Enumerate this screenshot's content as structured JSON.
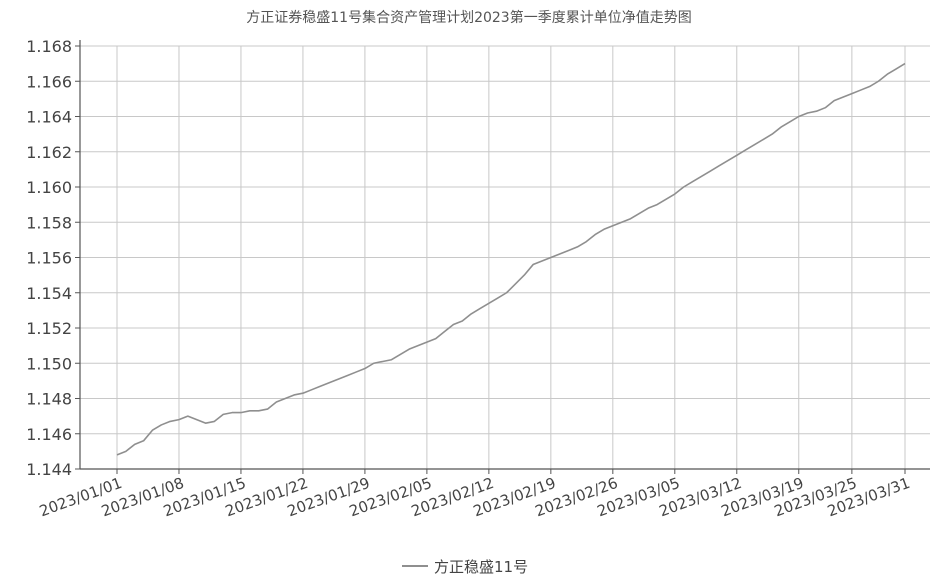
{
  "chart_data": {
    "type": "line",
    "title": "方正证券稳盛11号集合资产管理计划2023第一季度累计单位净值走势图",
    "xlabel": "",
    "ylabel": "",
    "ylim": [
      1.144,
      1.168
    ],
    "yticks": [
      "1.144",
      "1.146",
      "1.148",
      "1.150",
      "1.152",
      "1.154",
      "1.156",
      "1.158",
      "1.160",
      "1.162",
      "1.164",
      "1.166",
      "1.168"
    ],
    "xticks": [
      "2023/01/01",
      "2023/01/08",
      "2023/01/15",
      "2023/01/22",
      "2023/01/29",
      "2023/02/05",
      "2023/02/12",
      "2023/02/19",
      "2023/02/26",
      "2023/03/05",
      "2023/03/12",
      "2023/03/19",
      "2023/03/25",
      "2023/03/31"
    ],
    "grid": true,
    "legend": "bottom-center",
    "series": [
      {
        "name": "方正稳盛11号",
        "x": [
          "2023/01/01",
          "2023/01/02",
          "2023/01/03",
          "2023/01/04",
          "2023/01/05",
          "2023/01/06",
          "2023/01/07",
          "2023/01/08",
          "2023/01/09",
          "2023/01/10",
          "2023/01/11",
          "2023/01/12",
          "2023/01/13",
          "2023/01/14",
          "2023/01/15",
          "2023/01/16",
          "2023/01/17",
          "2023/01/18",
          "2023/01/19",
          "2023/01/20",
          "2023/01/21",
          "2023/01/22",
          "2023/01/23",
          "2023/01/24",
          "2023/01/25",
          "2023/01/26",
          "2023/01/27",
          "2023/01/28",
          "2023/01/29",
          "2023/01/30",
          "2023/01/31",
          "2023/02/01",
          "2023/02/02",
          "2023/02/03",
          "2023/02/04",
          "2023/02/05",
          "2023/02/06",
          "2023/02/07",
          "2023/02/08",
          "2023/02/09",
          "2023/02/10",
          "2023/02/11",
          "2023/02/12",
          "2023/02/13",
          "2023/02/14",
          "2023/02/15",
          "2023/02/16",
          "2023/02/17",
          "2023/02/18",
          "2023/02/19",
          "2023/02/20",
          "2023/02/21",
          "2023/02/22",
          "2023/02/23",
          "2023/02/24",
          "2023/02/25",
          "2023/02/26",
          "2023/02/27",
          "2023/02/28",
          "2023/03/01",
          "2023/03/02",
          "2023/03/03",
          "2023/03/04",
          "2023/03/05",
          "2023/03/06",
          "2023/03/07",
          "2023/03/08",
          "2023/03/09",
          "2023/03/10",
          "2023/03/11",
          "2023/03/12",
          "2023/03/13",
          "2023/03/14",
          "2023/03/15",
          "2023/03/16",
          "2023/03/17",
          "2023/03/18",
          "2023/03/19",
          "2023/03/20",
          "2023/03/21",
          "2023/03/22",
          "2023/03/23",
          "2023/03/24",
          "2023/03/25",
          "2023/03/26",
          "2023/03/27",
          "2023/03/28",
          "2023/03/29",
          "2023/03/30",
          "2023/03/31"
        ],
        "values": [
          1.1448,
          1.145,
          1.1454,
          1.1456,
          1.1462,
          1.1465,
          1.1467,
          1.1468,
          1.147,
          1.1468,
          1.1466,
          1.1467,
          1.1471,
          1.1472,
          1.1472,
          1.1473,
          1.1473,
          1.1474,
          1.1478,
          1.148,
          1.1482,
          1.1483,
          1.1485,
          1.1487,
          1.1489,
          1.1491,
          1.1493,
          1.1495,
          1.1497,
          1.15,
          1.1501,
          1.1502,
          1.1505,
          1.1508,
          1.151,
          1.1512,
          1.1514,
          1.1518,
          1.1522,
          1.1524,
          1.1528,
          1.1531,
          1.1534,
          1.1537,
          1.154,
          1.1545,
          1.155,
          1.1556,
          1.1558,
          1.156,
          1.1562,
          1.1564,
          1.1566,
          1.1569,
          1.1573,
          1.1576,
          1.1578,
          1.158,
          1.1582,
          1.1585,
          1.1588,
          1.159,
          1.1593,
          1.1596,
          1.16,
          1.1603,
          1.1606,
          1.1609,
          1.1612,
          1.1615,
          1.1618,
          1.1621,
          1.1624,
          1.1627,
          1.163,
          1.1634,
          1.1637,
          1.164,
          1.1642,
          1.1643,
          1.1645,
          1.1649,
          1.1651,
          1.1653,
          1.1655,
          1.1657,
          1.166,
          1.1664,
          1.1667,
          1.167
        ]
      }
    ]
  },
  "colors": {
    "line": "#8f8f8f",
    "axis": "#555555",
    "grid": "#c8c8c8",
    "text": "#444444"
  }
}
